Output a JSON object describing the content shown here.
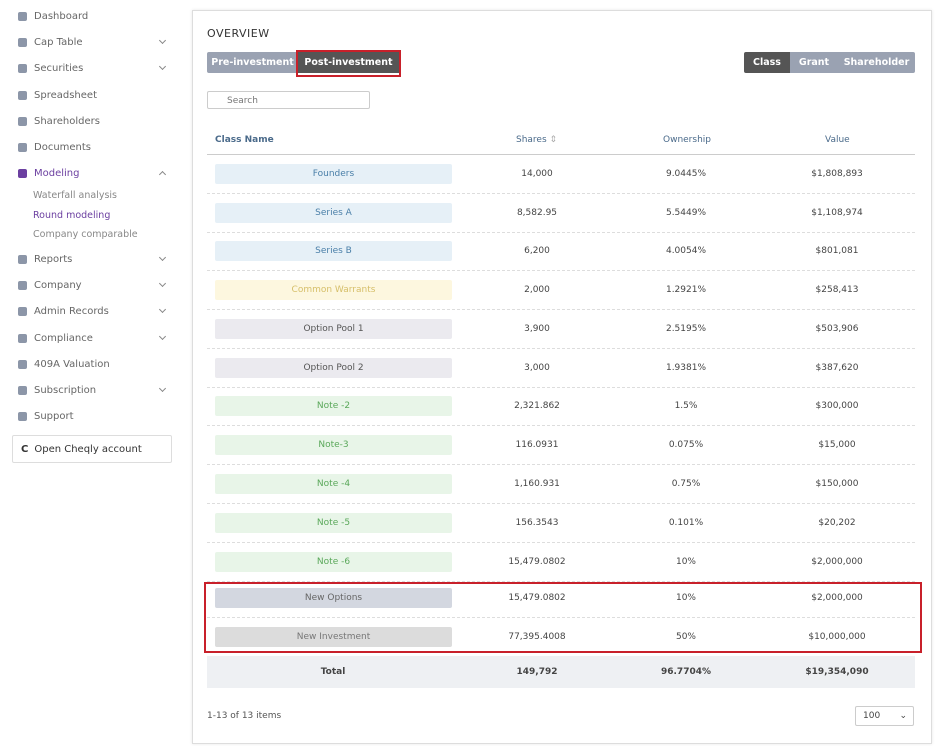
{
  "sidebar": {
    "items": [
      {
        "label": "Dashboard"
      },
      {
        "label": "Cap Table"
      },
      {
        "label": "Securities"
      },
      {
        "label": "Spreadsheet"
      },
      {
        "label": "Shareholders"
      },
      {
        "label": "Documents"
      },
      {
        "label": "Modeling"
      },
      {
        "label": "Reports"
      },
      {
        "label": "Company"
      },
      {
        "label": "Admin Records"
      },
      {
        "label": "Compliance"
      },
      {
        "label": "409A Valuation"
      },
      {
        "label": "Subscription"
      },
      {
        "label": "Support"
      }
    ],
    "subitems": [
      "Waterfall analysis",
      "Round modeling",
      "Company comparable"
    ],
    "button": "Open Cheqly account"
  },
  "overview": {
    "title": "OVERVIEW",
    "tabs": [
      "Pre-investment",
      "Post-investment"
    ],
    "views": [
      "Class",
      "Grant",
      "Shareholder"
    ],
    "search_placeholder": "Search",
    "columns": [
      "Class Name",
      "Shares",
      "Ownership",
      "Value"
    ],
    "rows": [
      [
        "Founders",
        "14,000",
        "9.0445%",
        "$1,808,893"
      ],
      [
        "Series A",
        "8,582.95",
        "5.5449%",
        "$1,108,974"
      ],
      [
        "Series B",
        "6,200",
        "4.0054%",
        "$801,081"
      ],
      [
        "Common Warrants",
        "2,000",
        "1.2921%",
        "$258,413"
      ],
      [
        "Option Pool 1",
        "3,900",
        "2.5195%",
        "$503,906"
      ],
      [
        "Option Pool 2",
        "3,000",
        "1.9381%",
        "$387,620"
      ],
      [
        "Note -2",
        "2,321.862",
        "1.5%",
        "$300,000"
      ],
      [
        "Note-3",
        "116.0931",
        "0.075%",
        "$15,000"
      ],
      [
        "Note -4",
        "1,160.931",
        "0.75%",
        "$150,000"
      ],
      [
        "Note -5",
        "156.3543",
        "0.101%",
        "$20,202"
      ],
      [
        "Note -6",
        "15,479.0802",
        "10%",
        "$2,000,000"
      ],
      [
        "New Options",
        "15,479.0802",
        "10%",
        "$2,000,000"
      ],
      [
        "New Investment",
        "77,395.4008",
        "50%",
        "$10,000,000"
      ]
    ],
    "total": [
      "Total",
      "149,792",
      "96.7704%",
      "$19,354,090"
    ],
    "pagination": "1-13 of 13 items",
    "page_size": "100"
  }
}
